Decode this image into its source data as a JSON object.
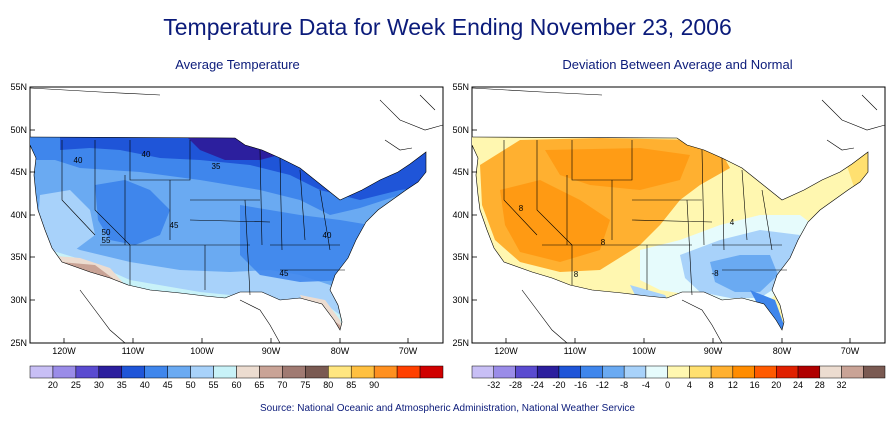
{
  "title": "Temperature Data for Week Ending November 23, 2006",
  "source": "Source:  National Oceanic and Atmospheric Administration, National Weather Service",
  "panels": [
    {
      "title": "Average Temperature",
      "lat_labels": [
        "55N",
        "50N",
        "45N",
        "40N",
        "35N",
        "30N",
        "25N"
      ],
      "lon_labels": [
        "120W",
        "110W",
        "100W",
        "90W",
        "80W",
        "70W"
      ],
      "contour_labels": [
        "40",
        "40",
        "35",
        "45",
        "50",
        "55",
        "40",
        "45"
      ],
      "legend": {
        "labels": [
          "20",
          "25",
          "30",
          "35",
          "40",
          "45",
          "50",
          "55",
          "60",
          "65",
          "70",
          "75",
          "80",
          "85",
          "90"
        ],
        "colors": [
          "#c8bff5",
          "#9a8ce8",
          "#5a4bd0",
          "#2c1f9e",
          "#1f55d8",
          "#3f86ec",
          "#6aaaf2",
          "#a8d2fa",
          "#c8f2f8",
          "#ecdcd0",
          "#c9a396",
          "#a07a72",
          "#7a5a52",
          "#ffe680",
          "#ffc040",
          "#ff9020",
          "#ff4000",
          "#d00000"
        ]
      }
    },
    {
      "title": "Deviation Between Average and Normal",
      "lat_labels": [
        "55N",
        "50N",
        "45N",
        "40N",
        "35N",
        "30N",
        "25N"
      ],
      "lon_labels": [
        "120W",
        "110W",
        "100W",
        "90W",
        "80W",
        "70W"
      ],
      "contour_labels": [
        "8",
        "8",
        "8",
        "4",
        "-8"
      ],
      "legend": {
        "labels": [
          "-32",
          "-28",
          "-24",
          "-20",
          "-16",
          "-12",
          "-8",
          "-4",
          "0",
          "4",
          "8",
          "12",
          "16",
          "20",
          "24",
          "28",
          "32"
        ],
        "colors": [
          "#c8bff5",
          "#9a8ce8",
          "#5a4bd0",
          "#2c1f9e",
          "#1f55d8",
          "#3f86ec",
          "#6aaaf2",
          "#a8d2fa",
          "#e6fbfc",
          "#fff7b0",
          "#ffe070",
          "#ffb030",
          "#ff8c00",
          "#ff5a00",
          "#e02000",
          "#b00000",
          "#ecdcd0",
          "#c9a396",
          "#7a5a52"
        ]
      }
    }
  ]
}
